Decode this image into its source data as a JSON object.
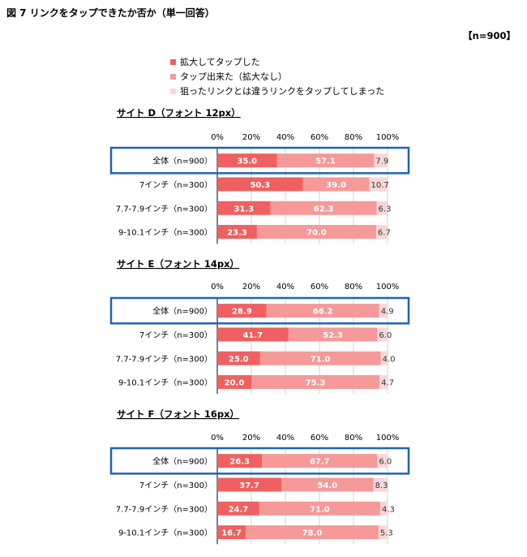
{
  "figure": {
    "title": "図 7  リンクをタップできたか否か（単一回答）",
    "sample_size": "【n=900】"
  },
  "legend": [
    {
      "label": "拡大してタップした",
      "color": "#f06060"
    },
    {
      "label": "タップ出来た（拡大なし）",
      "color": "#f59999"
    },
    {
      "label": "狙ったリンクとは違うリンクをタップしてしまった",
      "color": "#fad7d7"
    }
  ],
  "colors": {
    "series": [
      "#f06060",
      "#f59999",
      "#fad7d7"
    ],
    "highlight_border": "#1f64b4",
    "grid": "#c8c8c8",
    "axis": "#000000"
  },
  "chart_data": [
    {
      "type": "bar",
      "orientation": "horizontal",
      "stacked": true,
      "title": "サイト D（フォント 12px）",
      "xlim": [
        0,
        100
      ],
      "x_ticks": [
        "0%",
        "20%",
        "40%",
        "60%",
        "80%",
        "100%"
      ],
      "categories": [
        "全体（n=900）",
        "7インチ（n=300）",
        "7.7-7.9インチ（n=300）",
        "9-10.1インチ（n=300）"
      ],
      "highlighted_category": "全体（n=900）",
      "series": [
        {
          "values": [
            35.0,
            50.3,
            31.3,
            23.3
          ]
        },
        {
          "values": [
            57.1,
            39.0,
            62.3,
            70.0
          ]
        },
        {
          "values": [
            7.9,
            10.7,
            6.3,
            6.7
          ]
        }
      ]
    },
    {
      "type": "bar",
      "orientation": "horizontal",
      "stacked": true,
      "title": "サイト E（フォント 14px）",
      "xlim": [
        0,
        100
      ],
      "x_ticks": [
        "0%",
        "20%",
        "40%",
        "60%",
        "80%",
        "100%"
      ],
      "categories": [
        "全体（n=900）",
        "7インチ（n=300）",
        "7.7-7.9インチ（n=300）",
        "9-10.1インチ（n=300）"
      ],
      "highlighted_category": "全体（n=900）",
      "series": [
        {
          "values": [
            28.9,
            41.7,
            25.0,
            20.0
          ]
        },
        {
          "values": [
            66.2,
            52.3,
            71.0,
            75.3
          ]
        },
        {
          "values": [
            4.9,
            6.0,
            4.0,
            4.7
          ]
        }
      ]
    },
    {
      "type": "bar",
      "orientation": "horizontal",
      "stacked": true,
      "title": "サイト F（フォント 16px）",
      "xlim": [
        0,
        100
      ],
      "x_ticks": [
        "0%",
        "20%",
        "40%",
        "60%",
        "80%",
        "100%"
      ],
      "categories": [
        "全体（n=900）",
        "7インチ（n=300）",
        "7.7-7.9インチ（n=300）",
        "9-10.1インチ（n=300）"
      ],
      "highlighted_category": "全体（n=900）",
      "series": [
        {
          "values": [
            26.3,
            37.7,
            24.7,
            16.7
          ]
        },
        {
          "values": [
            67.7,
            54.0,
            71.0,
            78.0
          ]
        },
        {
          "values": [
            6.0,
            8.3,
            4.3,
            5.3
          ]
        }
      ]
    }
  ]
}
